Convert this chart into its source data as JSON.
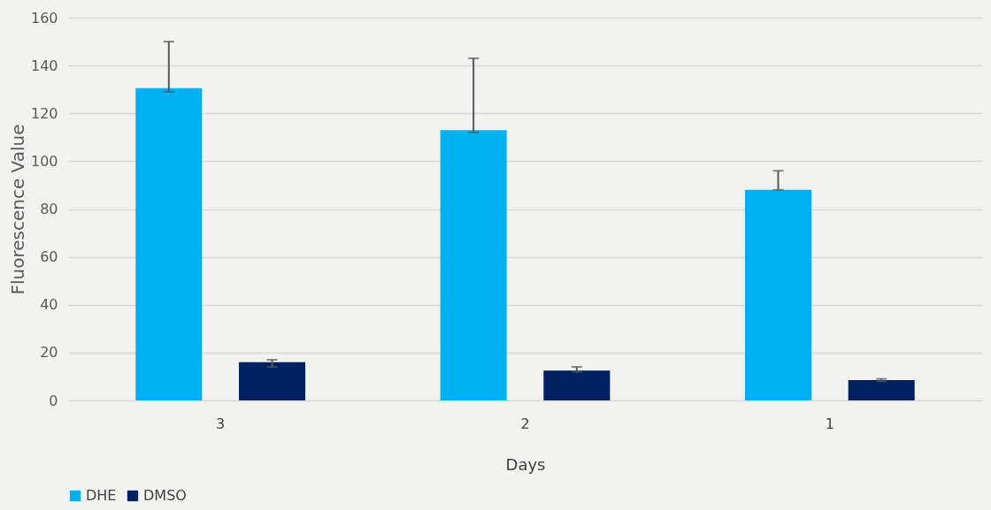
{
  "chart_data": {
    "type": "bar",
    "xlabel": "Days",
    "ylabel": "Fluorescence Value",
    "categories": [
      "3",
      "2",
      "1"
    ],
    "series": [
      {
        "name": "DHE",
        "color": "#00b0f0",
        "values": [
          130.5,
          113,
          88
        ],
        "errors": [
          [
            129,
            150
          ],
          [
            112,
            143
          ],
          [
            88,
            96
          ]
        ]
      },
      {
        "name": "DMSO",
        "color": "#002060",
        "values": [
          16,
          12.5,
          8.5
        ],
        "errors": [
          [
            14,
            17
          ],
          [
            12,
            14
          ],
          [
            8,
            9
          ]
        ]
      }
    ],
    "ylim": [
      0,
      160
    ],
    "yticks": [
      0,
      20,
      40,
      60,
      80,
      100,
      120,
      140,
      160
    ],
    "grid": "y",
    "legend": "bottom"
  }
}
